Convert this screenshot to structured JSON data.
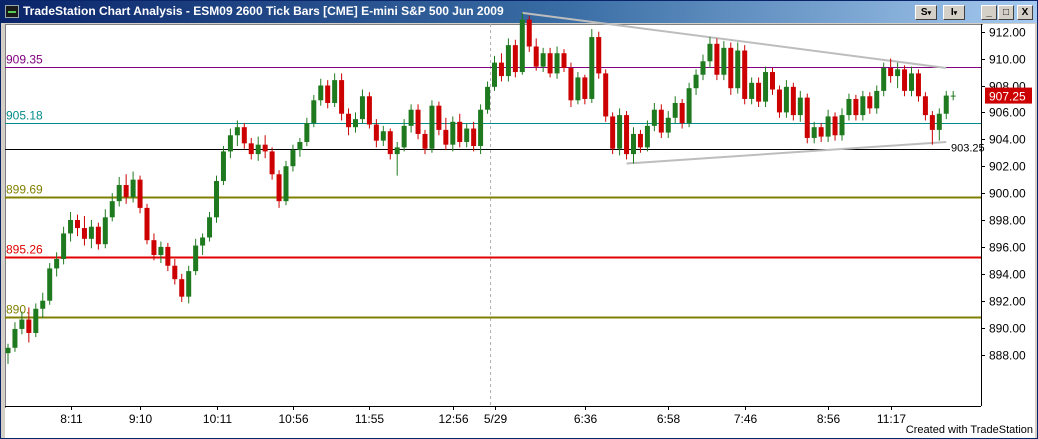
{
  "window": {
    "title": "TradeStation Chart Analysis - ESM09  2600 Tick Bars [CME] E-mini S&P 500 Jun 2009",
    "btn_s": "S",
    "btn_i": "I",
    "btn_min": "_",
    "btn_max": "□",
    "btn_close": "X"
  },
  "footer": {
    "credit": "Created with TradeStation"
  },
  "colors": {
    "up_bar": "#1f7a1f",
    "down_bar": "#cc0000",
    "purple_line": "#800080",
    "teal_line": "#008b8b",
    "olive_line": "#808000",
    "red_line": "#e00000",
    "black_line": "#000000",
    "trendline": "#bdbdbd",
    "last_price_bg": "#cc0000"
  },
  "chart_data": {
    "type": "candlestick",
    "instrument": "ESM09 2600 Tick Bars",
    "ylim": [
      886.5,
      914.0
    ],
    "y_ticks": [
      888,
      890,
      892,
      894,
      896,
      898,
      900,
      902,
      904,
      906,
      908,
      910,
      912
    ],
    "y_tick_labels": [
      "888.00",
      "890.00",
      "892.00",
      "894.00",
      "896.00",
      "898.00",
      "900.00",
      "902.00",
      "904.00",
      "906.00",
      "908.00",
      "910.00",
      "912.00"
    ],
    "x_ticks": [
      {
        "bar": 9,
        "label": "8:11"
      },
      {
        "bar": 19,
        "label": "9:10"
      },
      {
        "bar": 30,
        "label": "10:11"
      },
      {
        "bar": 41,
        "label": "10:56"
      },
      {
        "bar": 52,
        "label": "11:55"
      },
      {
        "bar": 64,
        "label": "12:56"
      },
      {
        "bar": 70,
        "label": "5/29"
      },
      {
        "bar": 83,
        "label": "6:36"
      },
      {
        "bar": 95,
        "label": "6:58"
      },
      {
        "bar": 106,
        "label": "7:46"
      },
      {
        "bar": 118,
        "label": "8:56"
      },
      {
        "bar": 127,
        "label": "11:17"
      }
    ],
    "session_break_bar": 69,
    "horizontal_lines": [
      {
        "value": 909.35,
        "label": "909.35",
        "color": "#800080"
      },
      {
        "value": 905.18,
        "label": "905.18",
        "color": "#008b8b"
      },
      {
        "value": 903.25,
        "label": "903.25",
        "color": "#000000",
        "label_position": "right"
      },
      {
        "value": 899.69,
        "label": "899.69",
        "color": "#808000"
      },
      {
        "value": 895.26,
        "label": "895.26",
        "color": "#e00000"
      },
      {
        "value": 890.8,
        "label": "890.",
        "color": "#808000"
      }
    ],
    "trendlines": [
      {
        "from_bar": 74,
        "from_value": 913.4,
        "to_bar": 135,
        "to_value": 909.3
      },
      {
        "from_bar": 89,
        "from_value": 902.2,
        "to_bar": 135,
        "to_value": 903.8
      }
    ],
    "last_price": "907.25",
    "bars": [
      [
        888.1,
        888.8,
        887.3,
        888.5
      ],
      [
        888.5,
        890.4,
        888.2,
        889.9
      ],
      [
        889.9,
        891.2,
        889.5,
        890.6
      ],
      [
        890.6,
        891.5,
        888.9,
        889.6
      ],
      [
        889.6,
        891.8,
        889.3,
        891.4
      ],
      [
        891.4,
        892.6,
        890.7,
        892.0
      ],
      [
        892.0,
        894.8,
        891.7,
        894.4
      ],
      [
        894.4,
        895.6,
        893.8,
        895.1
      ],
      [
        895.1,
        897.5,
        894.7,
        897.0
      ],
      [
        897.0,
        898.6,
        896.4,
        898.0
      ],
      [
        898.0,
        898.4,
        896.8,
        897.4
      ],
      [
        897.4,
        898.3,
        896.1,
        896.6
      ],
      [
        896.6,
        898.0,
        895.9,
        897.5
      ],
      [
        897.5,
        897.8,
        895.8,
        896.2
      ],
      [
        896.2,
        898.8,
        895.9,
        898.2
      ],
      [
        898.2,
        900.0,
        897.9,
        899.4
      ],
      [
        899.4,
        901.2,
        899.0,
        900.6
      ],
      [
        900.6,
        901.4,
        899.2,
        899.7
      ],
      [
        899.7,
        901.6,
        899.3,
        901.0
      ],
      [
        901.0,
        901.3,
        898.5,
        898.9
      ],
      [
        898.9,
        899.2,
        896.2,
        896.5
      ],
      [
        896.5,
        897.0,
        895.0,
        895.4
      ],
      [
        895.4,
        896.4,
        894.8,
        896.0
      ],
      [
        896.0,
        896.3,
        894.2,
        894.6
      ],
      [
        894.6,
        895.1,
        893.2,
        893.6
      ],
      [
        893.6,
        894.0,
        891.9,
        892.3
      ],
      [
        892.3,
        894.6,
        891.8,
        894.2
      ],
      [
        894.2,
        896.6,
        893.9,
        896.1
      ],
      [
        896.1,
        897.0,
        895.4,
        896.7
      ],
      [
        896.7,
        898.6,
        896.4,
        898.2
      ],
      [
        898.2,
        901.3,
        897.8,
        900.9
      ],
      [
        900.9,
        903.5,
        900.6,
        903.1
      ],
      [
        903.1,
        904.8,
        902.6,
        904.3
      ],
      [
        904.3,
        905.4,
        903.5,
        904.9
      ],
      [
        904.9,
        905.2,
        903.3,
        903.7
      ],
      [
        903.7,
        904.1,
        902.5,
        902.9
      ],
      [
        902.9,
        904.2,
        902.4,
        903.6
      ],
      [
        903.6,
        904.3,
        902.6,
        903.1
      ],
      [
        903.1,
        903.4,
        901.0,
        901.4
      ],
      [
        901.4,
        901.7,
        898.9,
        899.4
      ],
      [
        899.4,
        902.4,
        899.1,
        902.0
      ],
      [
        902.0,
        903.6,
        901.6,
        903.2
      ],
      [
        903.2,
        904.1,
        902.7,
        903.8
      ],
      [
        903.8,
        905.6,
        903.5,
        905.2
      ],
      [
        905.2,
        907.3,
        904.9,
        906.9
      ],
      [
        906.9,
        908.5,
        906.5,
        908.0
      ],
      [
        908.0,
        908.4,
        906.3,
        906.7
      ],
      [
        906.7,
        908.9,
        906.4,
        908.4
      ],
      [
        908.4,
        908.9,
        905.4,
        905.9
      ],
      [
        905.9,
        906.3,
        904.3,
        904.9
      ],
      [
        904.9,
        906.0,
        904.5,
        905.5
      ],
      [
        905.5,
        907.7,
        905.2,
        907.2
      ],
      [
        907.2,
        907.5,
        904.8,
        905.1
      ],
      [
        905.1,
        905.5,
        903.4,
        903.9
      ],
      [
        903.9,
        905.0,
        903.5,
        904.6
      ],
      [
        904.6,
        904.8,
        902.5,
        902.9
      ],
      [
        902.9,
        903.8,
        901.3,
        903.4
      ],
      [
        903.4,
        905.5,
        903.1,
        905.0
      ],
      [
        905.0,
        906.6,
        904.5,
        906.2
      ],
      [
        906.2,
        906.6,
        904.0,
        904.4
      ],
      [
        904.4,
        904.7,
        902.9,
        903.3
      ],
      [
        903.3,
        906.9,
        903.0,
        906.5
      ],
      [
        906.5,
        906.8,
        904.3,
        904.7
      ],
      [
        904.7,
        905.6,
        903.2,
        903.6
      ],
      [
        903.6,
        905.7,
        903.1,
        905.3
      ],
      [
        905.3,
        905.9,
        903.4,
        903.8
      ],
      [
        903.8,
        905.2,
        903.4,
        904.8
      ],
      [
        904.8,
        905.3,
        903.1,
        903.5
      ],
      [
        903.5,
        906.6,
        902.9,
        906.2
      ],
      [
        906.2,
        908.3,
        905.9,
        907.9
      ],
      [
        907.9,
        910.2,
        907.6,
        909.7
      ],
      [
        909.7,
        910.4,
        908.3,
        908.7
      ],
      [
        908.7,
        911.5,
        908.3,
        911.0
      ],
      [
        911.0,
        911.4,
        908.6,
        909.0
      ],
      [
        909.0,
        913.4,
        908.8,
        912.9
      ],
      [
        912.9,
        913.2,
        910.5,
        910.9
      ],
      [
        910.9,
        911.5,
        909.1,
        909.4
      ],
      [
        909.4,
        910.8,
        909.0,
        910.4
      ],
      [
        910.4,
        910.8,
        908.6,
        908.9
      ],
      [
        908.9,
        910.9,
        908.5,
        910.4
      ],
      [
        910.4,
        910.7,
        909.0,
        909.3
      ],
      [
        909.3,
        909.7,
        906.4,
        906.9
      ],
      [
        906.9,
        909.0,
        906.6,
        908.6
      ],
      [
        908.6,
        908.8,
        906.6,
        907.0
      ],
      [
        907.0,
        912.2,
        906.7,
        911.6
      ],
      [
        911.6,
        912.0,
        908.5,
        908.9
      ],
      [
        908.9,
        909.2,
        905.3,
        905.7
      ],
      [
        905.7,
        906.0,
        902.9,
        903.3
      ],
      [
        903.3,
        906.3,
        902.8,
        905.8
      ],
      [
        905.8,
        906.1,
        902.5,
        902.9
      ],
      [
        902.9,
        904.9,
        902.2,
        904.4
      ],
      [
        904.4,
        904.7,
        903.0,
        903.4
      ],
      [
        903.4,
        905.4,
        903.1,
        905.0
      ],
      [
        905.0,
        906.7,
        904.6,
        906.2
      ],
      [
        906.2,
        906.6,
        904.1,
        904.5
      ],
      [
        904.5,
        906.1,
        904.1,
        905.6
      ],
      [
        905.6,
        907.2,
        905.2,
        906.7
      ],
      [
        906.7,
        907.0,
        904.8,
        905.2
      ],
      [
        905.2,
        908.2,
        904.9,
        907.8
      ],
      [
        907.8,
        909.2,
        907.3,
        908.8
      ],
      [
        908.8,
        910.3,
        908.4,
        909.8
      ],
      [
        909.8,
        911.6,
        909.3,
        911.1
      ],
      [
        911.1,
        911.5,
        908.4,
        908.8
      ],
      [
        908.8,
        911.3,
        908.4,
        910.8
      ],
      [
        910.8,
        911.2,
        907.3,
        907.8
      ],
      [
        907.8,
        911.2,
        907.4,
        910.6
      ],
      [
        910.6,
        911.0,
        906.6,
        907.0
      ],
      [
        907.0,
        908.6,
        906.6,
        908.2
      ],
      [
        908.2,
        908.6,
        906.4,
        906.8
      ],
      [
        906.8,
        909.4,
        906.4,
        909.0
      ],
      [
        909.0,
        909.3,
        907.3,
        907.7
      ],
      [
        907.7,
        908.0,
        905.6,
        906.0
      ],
      [
        906.0,
        908.4,
        905.6,
        907.9
      ],
      [
        907.9,
        908.2,
        905.4,
        905.8
      ],
      [
        905.8,
        907.6,
        905.3,
        907.1
      ],
      [
        907.1,
        907.4,
        903.7,
        904.1
      ],
      [
        904.1,
        905.3,
        903.7,
        904.9
      ],
      [
        904.9,
        905.2,
        903.8,
        904.2
      ],
      [
        904.2,
        906.2,
        903.8,
        905.7
      ],
      [
        905.7,
        906.0,
        903.9,
        904.3
      ],
      [
        904.3,
        906.3,
        903.9,
        905.8
      ],
      [
        905.8,
        907.4,
        905.4,
        907.0
      ],
      [
        907.0,
        907.3,
        905.4,
        905.8
      ],
      [
        905.8,
        907.6,
        905.4,
        907.2
      ],
      [
        907.2,
        907.5,
        905.9,
        906.3
      ],
      [
        906.3,
        908.0,
        905.9,
        907.6
      ],
      [
        907.6,
        909.7,
        907.2,
        909.3
      ],
      [
        909.3,
        910.0,
        908.2,
        908.7
      ],
      [
        908.7,
        909.7,
        907.8,
        909.2
      ],
      [
        909.2,
        909.5,
        907.2,
        907.6
      ],
      [
        907.6,
        909.4,
        907.2,
        908.9
      ],
      [
        908.9,
        909.2,
        906.8,
        907.2
      ],
      [
        907.2,
        907.5,
        905.4,
        905.8
      ],
      [
        905.8,
        906.1,
        903.6,
        904.7
      ],
      [
        904.7,
        906.3,
        903.9,
        905.9
      ],
      [
        905.9,
        907.6,
        905.5,
        907.25
      ],
      [
        907.25,
        907.6,
        906.9,
        907.25
      ]
    ]
  }
}
